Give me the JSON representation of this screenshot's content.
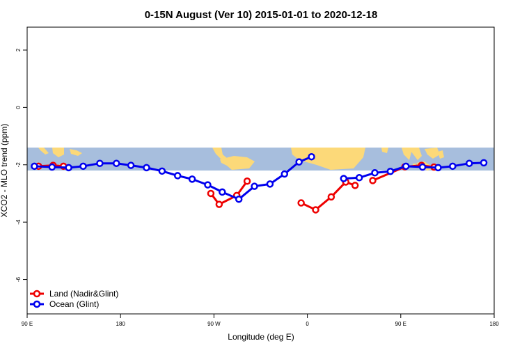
{
  "chart_data": {
    "type": "line",
    "title": "0-15N August (Ver 10)   2015-01-01 to 2020-12-18",
    "xlabel": "Longitude (deg E)",
    "ylabel": "XCO2 - MLO trend (ppm)",
    "xlim": [
      90,
      540
    ],
    "ylim": [
      -7.2,
      2.8
    ],
    "x_ticks": [
      {
        "value": 90,
        "label": "90 E"
      },
      {
        "value": 180,
        "label": "180"
      },
      {
        "value": 270,
        "label": "90 W"
      },
      {
        "value": 360,
        "label": "0"
      },
      {
        "value": 450,
        "label": "90 E"
      },
      {
        "value": 540,
        "label": "180"
      }
    ],
    "y_ticks": [
      {
        "value": 2,
        "label": "2"
      },
      {
        "value": 0,
        "label": "0"
      },
      {
        "value": -2,
        "label": "-2"
      },
      {
        "value": -4,
        "label": "-4"
      },
      {
        "value": -6,
        "label": "-6"
      }
    ],
    "map_band": {
      "y_top": -1.4,
      "y_bottom": -2.2,
      "ocean_color": "#a7bedd",
      "land_color": "#fcd979"
    },
    "grid": false,
    "legend_position": "bottom-left",
    "series": [
      {
        "name": "Land (Nadir&Glint)",
        "color": "#ee0000",
        "segments": [
          [
            [
              101,
              -2.05
            ],
            [
              115,
              -2.02
            ],
            [
              125,
              -2.05
            ]
          ],
          [
            [
              267,
              -3.0
            ],
            [
              275,
              -3.38
            ],
            [
              292,
              -3.07
            ],
            [
              302,
              -2.57
            ]
          ],
          [
            [
              354,
              -3.33
            ],
            [
              368,
              -3.57
            ],
            [
              383,
              -3.12
            ],
            [
              397,
              -2.6
            ],
            [
              406,
              -2.72
            ]
          ],
          [
            [
              423,
              -2.55
            ],
            [
              454,
              -2.07
            ],
            [
              470,
              -2.02
            ],
            [
              482,
              -2.08
            ]
          ]
        ]
      },
      {
        "name": "Ocean (Glint)",
        "color": "#0000ee",
        "segments": [
          [
            [
              97,
              -2.05
            ],
            [
              114,
              -2.08
            ],
            [
              130,
              -2.1
            ],
            [
              144,
              -2.05
            ],
            [
              160,
              -1.95
            ],
            [
              176,
              -1.95
            ],
            [
              190,
              -2.02
            ],
            [
              205,
              -2.1
            ],
            [
              220,
              -2.22
            ],
            [
              235,
              -2.38
            ],
            [
              249,
              -2.5
            ],
            [
              264,
              -2.7
            ],
            [
              278,
              -2.95
            ],
            [
              294,
              -3.2
            ],
            [
              309,
              -2.75
            ],
            [
              324,
              -2.67
            ],
            [
              338,
              -2.32
            ],
            [
              352,
              -1.9
            ],
            [
              364,
              -1.72
            ]
          ],
          [
            [
              395,
              -2.48
            ],
            [
              410,
              -2.45
            ],
            [
              425,
              -2.28
            ],
            [
              440,
              -2.23
            ],
            [
              455,
              -2.05
            ],
            [
              471,
              -2.08
            ],
            [
              486,
              -2.1
            ],
            [
              500,
              -2.05
            ],
            [
              516,
              -1.95
            ],
            [
              530,
              -1.93
            ]
          ]
        ]
      }
    ]
  }
}
